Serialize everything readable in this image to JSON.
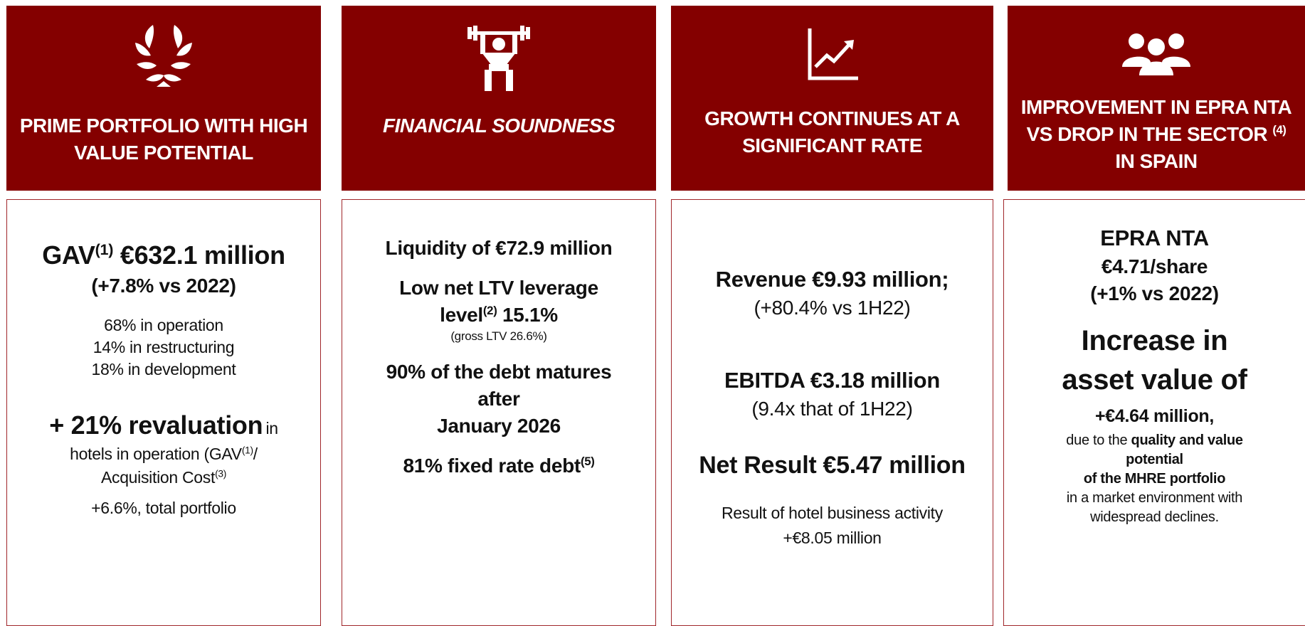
{
  "columns": [
    {
      "title": [
        "PRIME PORTFOLIO WITH HIGH VALUE POTENTIAL"
      ],
      "body": [
        "GAV",
        "(1)",
        "€632.1 million",
        "(+7.8% vs 2022)",
        "68% in operation",
        "14% in restructuring",
        "18% in development",
        "+ 21% revaluation",
        "in",
        "hotels in operation (GAV",
        "(1)",
        "/",
        "Acquisition Cost",
        "(3)",
        "+6.6%, total portfolio"
      ]
    },
    {
      "title": [
        "FINANCIAL SOUNDNESS"
      ],
      "body": [
        "Liquidity of €72.9 million",
        "Low net LTV leverage",
        "level",
        "(2)",
        "15.1%",
        "(gross LTV 26.6%)",
        "90% of the debt matures",
        "after",
        "January 2026",
        "81% fixed rate debt",
        "(5)"
      ]
    },
    {
      "title": [
        "GROWTH CONTINUES AT A SIGNIFICANT RATE"
      ],
      "body": [
        "Revenue €9.93 million;",
        "(+80.4% vs 1H22)",
        "EBITDA €3.18 million",
        "(9.4x that of 1H22)",
        "Net Result €5.47 million",
        "Result of hotel business activity",
        "+€8.05 million"
      ]
    },
    {
      "title": [
        "IMPROVEMENT IN EPRA NTA VS DROP IN THE SECTOR",
        "(4)",
        "IN SPAIN"
      ],
      "body": [
        "EPRA NTA",
        "€4.71/share",
        "(+1% vs 2022)",
        "Increase in",
        "asset value of",
        "+€4.64 million,",
        "due to the",
        "quality and value",
        "potential",
        "of the MHRE portfolio",
        "in a market environment with",
        "widespread declines."
      ]
    }
  ]
}
